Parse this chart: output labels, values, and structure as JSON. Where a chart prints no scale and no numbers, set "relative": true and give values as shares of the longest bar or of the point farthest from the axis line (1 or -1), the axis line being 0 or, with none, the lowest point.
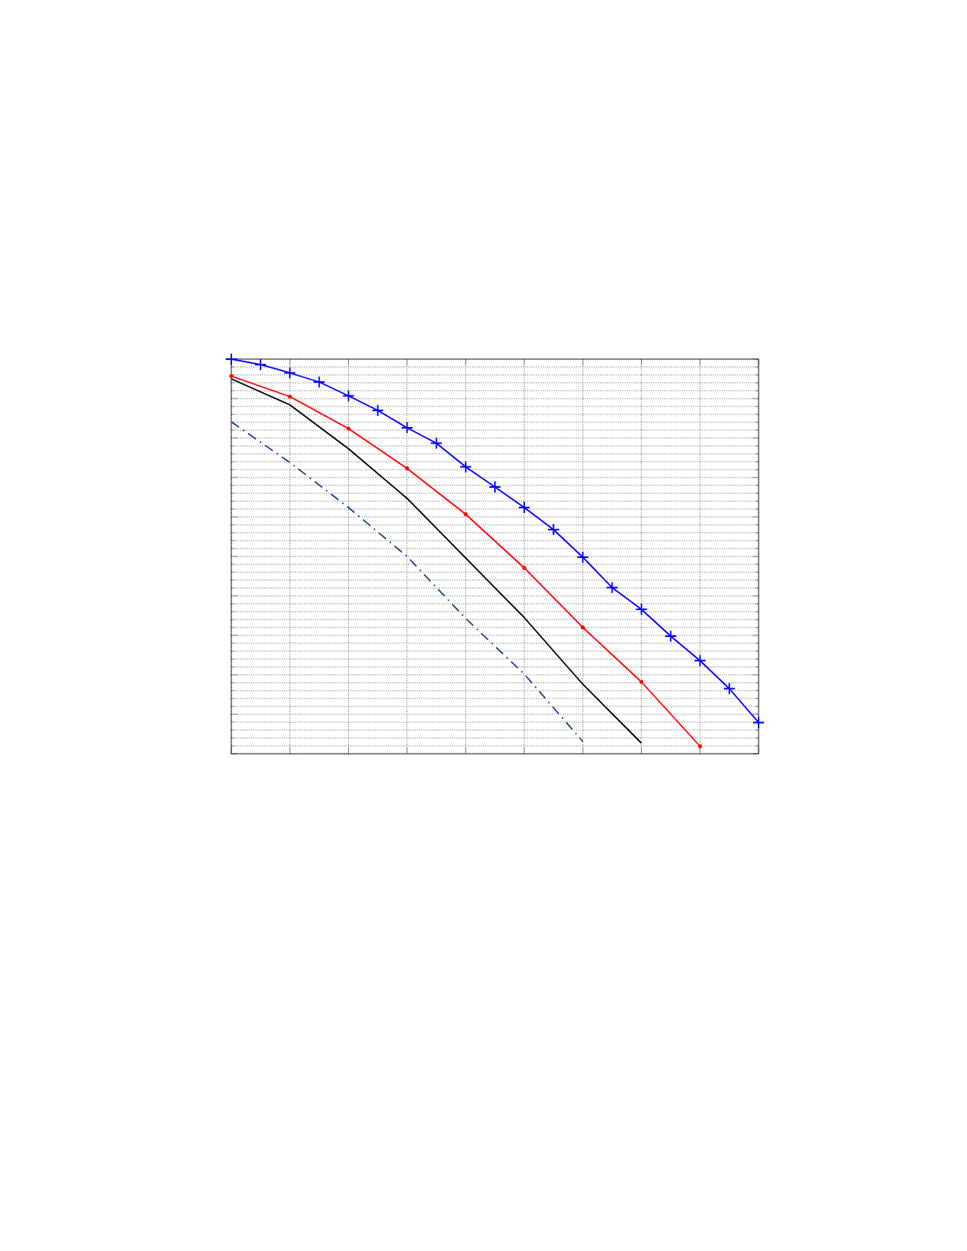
{
  "chart_data": {
    "type": "line",
    "relative": true,
    "grid": true,
    "categories": [
      null,
      null,
      null,
      null,
      null,
      null,
      null,
      null,
      null,
      null,
      null,
      null,
      null,
      null,
      null,
      null,
      null,
      null,
      null
    ],
    "series": [
      {
        "color": "#0000ff",
        "marker": "cross",
        "values": [
          1.0,
          0.986,
          0.965,
          0.942,
          0.907,
          0.87,
          0.826,
          0.787,
          0.727,
          0.676,
          0.624,
          0.568,
          0.498,
          0.421,
          0.366,
          0.298,
          0.236,
          0.165,
          0.079
        ]
      },
      {
        "color": "#ff0000",
        "marker": "circle",
        "values": [
          0.957,
          null,
          0.905,
          null,
          0.824,
          null,
          0.723,
          null,
          0.607,
          null,
          0.471,
          null,
          0.32,
          null,
          0.182,
          null,
          0.019,
          null,
          null
        ]
      },
      {
        "color": "#000000",
        "values": [
          0.95,
          null,
          0.884,
          null,
          0.773,
          null,
          0.647,
          null,
          0.496,
          null,
          0.345,
          null,
          0.176,
          null,
          0.027,
          null,
          null,
          null,
          null
        ]
      },
      {
        "color": "#1c4587",
        "line_style": "dashdot",
        "values": [
          0.841,
          null,
          0.738,
          null,
          0.624,
          null,
          0.5,
          null,
          0.343,
          null,
          0.202,
          null,
          0.031,
          null,
          null,
          null,
          null,
          null,
          null
        ]
      }
    ]
  }
}
